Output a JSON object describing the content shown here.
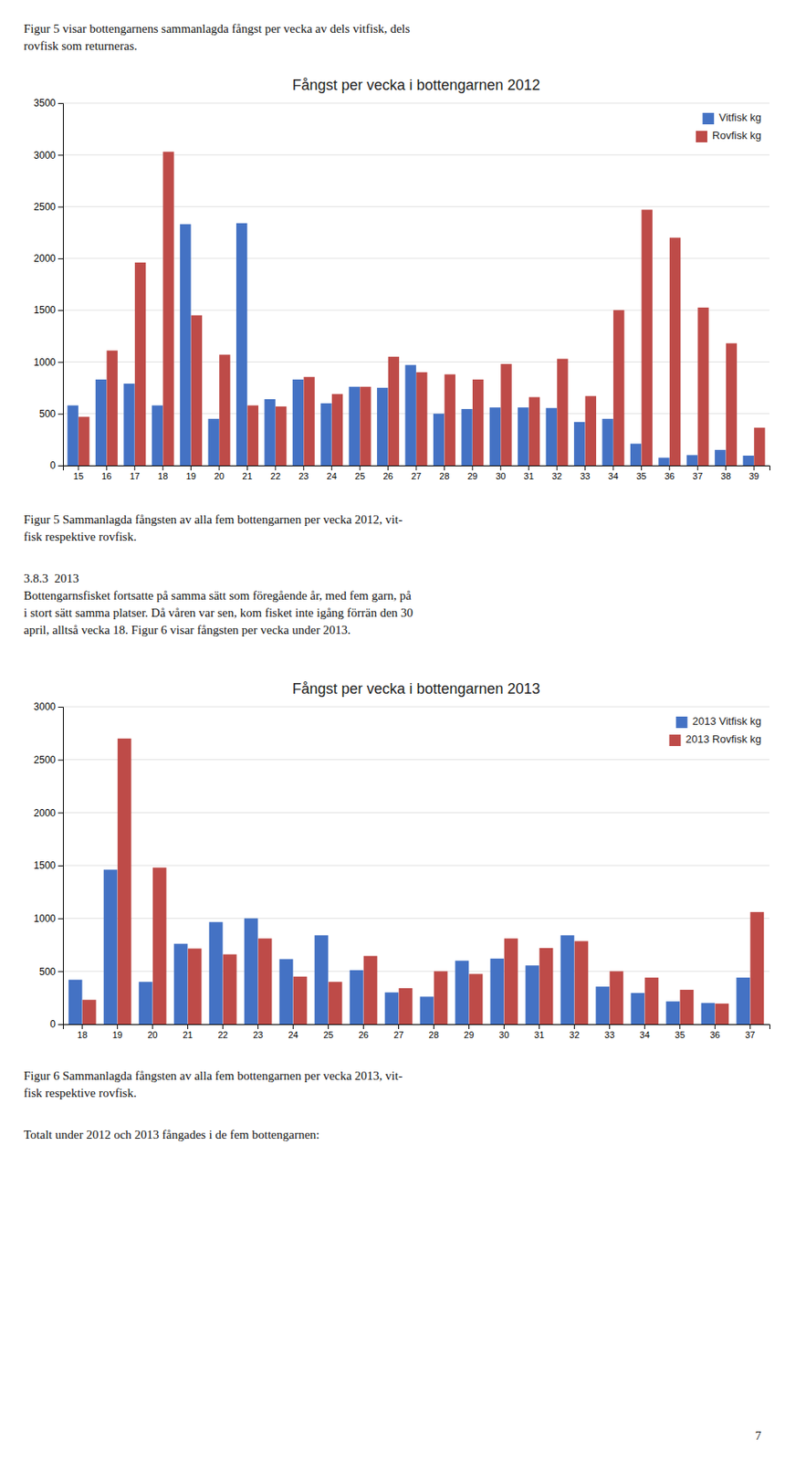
{
  "chart_data": [
    {
      "type": "bar",
      "title": "Fångst per vecka i bottengarnen 2012",
      "categories": [
        15,
        16,
        17,
        18,
        19,
        20,
        21,
        22,
        23,
        24,
        25,
        26,
        27,
        28,
        29,
        30,
        31,
        32,
        33,
        34,
        35,
        36,
        37,
        38,
        39
      ],
      "series": [
        {
          "name": "Vitfisk kg",
          "color": "#4472C4",
          "values": [
            580,
            830,
            790,
            580,
            2330,
            450,
            2340,
            640,
            830,
            600,
            760,
            750,
            970,
            500,
            545,
            560,
            560,
            555,
            420,
            450,
            210,
            75,
            100,
            150,
            95
          ]
        },
        {
          "name": "Rovfisk kg",
          "color": "#BE4B48",
          "values": [
            470,
            1110,
            1960,
            3030,
            1450,
            1070,
            580,
            570,
            855,
            690,
            760,
            1050,
            900,
            880,
            830,
            980,
            660,
            1030,
            670,
            1500,
            2470,
            2200,
            1525,
            1180,
            365
          ]
        }
      ],
      "ylim": [
        0,
        3500
      ],
      "yticks": [
        0,
        500,
        1000,
        1500,
        2000,
        2500,
        3000,
        3500
      ],
      "grid": true,
      "legend": "upper right"
    },
    {
      "type": "bar",
      "title": "Fångst per vecka i bottengarnen 2013",
      "categories": [
        18,
        19,
        20,
        21,
        22,
        23,
        24,
        25,
        26,
        27,
        28,
        29,
        30,
        31,
        32,
        33,
        34,
        35,
        36,
        37
      ],
      "series": [
        {
          "name": "2013 Vitfisk kg",
          "color": "#4472C4",
          "values": [
            420,
            1460,
            400,
            760,
            965,
            1000,
            615,
            840,
            510,
            300,
            260,
            600,
            620,
            555,
            840,
            355,
            295,
            215,
            200,
            440
          ]
        },
        {
          "name": "2013 Rovfisk kg",
          "color": "#BE4B48",
          "values": [
            230,
            2700,
            1480,
            715,
            660,
            810,
            450,
            400,
            645,
            340,
            500,
            475,
            810,
            720,
            785,
            500,
            440,
            325,
            195,
            1060
          ]
        }
      ],
      "ylim": [
        0,
        3000
      ],
      "yticks": [
        0,
        500,
        1000,
        1500,
        2000,
        2500,
        3000
      ],
      "grid": true,
      "legend": "upper right"
    }
  ],
  "text_top": "Figur 5 visar bottengarnens sammanlagda fångst per vecka av dels vitfisk, dels\nrovfisk som returneras.",
  "text_caption1": "Figur 5 Sammanlagda fångsten av alla fem bottengarnen per vecka 2012, vit-\nfisk respektive rovfisk.",
  "text_section": "3.8.3  2013\nBottengarnsfisket fortsatte på samma sätt som föregående år, med fem garn, på\ni stort sätt samma platser. Då våren var sen, kom fisket inte igång förrän den 30\napril, alltså vecka 18. Figur 6 visar fångsten per vecka under 2013.",
  "text_caption2": "Figur 6 Sammanlagda fångsten av alla fem bottengarnen per vecka 2013, vit-\nfisk respektive rovfisk.",
  "text_bottom": "Totalt under 2012 och 2013 fångades i de fem bottengarnen:",
  "page_number": "7"
}
